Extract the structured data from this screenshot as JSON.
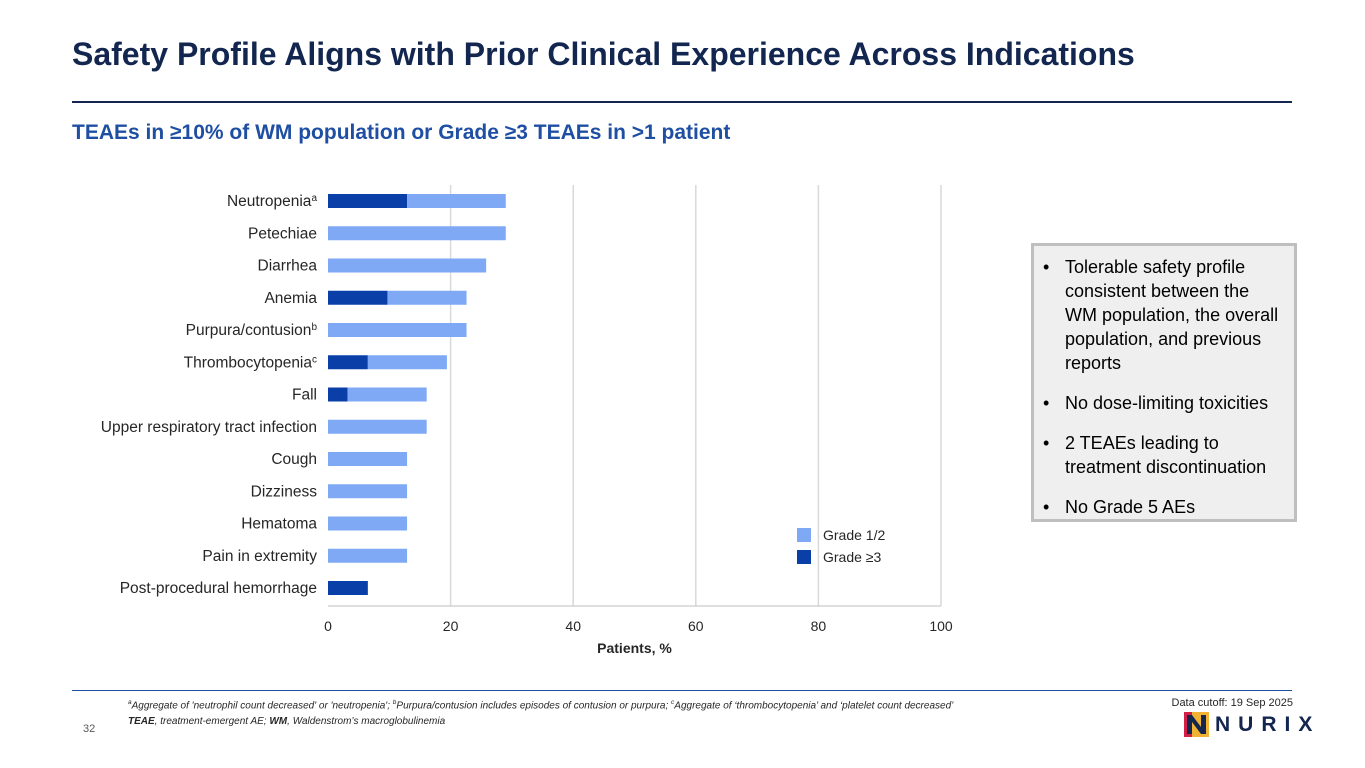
{
  "header": {
    "title": "Safety Profile Aligns with Prior Clinical Experience Across Indications",
    "subtitle": "TEAEs in ≥10% of WM population or Grade ≥3 TEAEs in >1 patient"
  },
  "chart_data": {
    "type": "bar",
    "orientation": "horizontal",
    "stacked": true,
    "categories": [
      {
        "label": "Neutropenia",
        "sup": "a"
      },
      {
        "label": "Petechiae",
        "sup": ""
      },
      {
        "label": "Diarrhea",
        "sup": ""
      },
      {
        "label": "Anemia",
        "sup": ""
      },
      {
        "label": "Purpura/contusion",
        "sup": "b"
      },
      {
        "label": "Thrombocytopenia",
        "sup": "c"
      },
      {
        "label": "Fall",
        "sup": ""
      },
      {
        "label": "Upper respiratory tract infection",
        "sup": ""
      },
      {
        "label": "Cough",
        "sup": ""
      },
      {
        "label": "Dizziness",
        "sup": ""
      },
      {
        "label": "Hematoma",
        "sup": ""
      },
      {
        "label": "Pain in extremity",
        "sup": ""
      },
      {
        "label": "Post-procedural hemorrhage",
        "sup": ""
      }
    ],
    "series": [
      {
        "name": "Grade ≥3",
        "color": "#0b3fa8",
        "values": [
          12.9,
          0,
          0,
          9.7,
          0,
          6.5,
          3.2,
          0,
          0,
          0,
          0,
          0,
          6.5
        ]
      },
      {
        "name": "Grade 1/2",
        "color": "#7fa9f5",
        "values": [
          16.1,
          29.0,
          25.8,
          12.9,
          22.6,
          12.9,
          12.9,
          16.1,
          12.9,
          12.9,
          12.9,
          12.9,
          0
        ]
      }
    ],
    "legend": [
      {
        "name": "Grade 1/2",
        "color": "#7fa9f5"
      },
      {
        "name": "Grade ≥3",
        "color": "#0b3fa8"
      }
    ],
    "xlim": [
      0,
      100
    ],
    "xticks": [
      0,
      20,
      40,
      60,
      80,
      100
    ],
    "xlabel": "Patients, %",
    "ylabel": "",
    "grid": true,
    "legend_position": "bottom-right"
  },
  "callout": {
    "bullets": [
      "Tolerable safety profile consistent between the WM population, the overall population, and previous reports",
      "No dose-limiting toxicities",
      "2 TEAEs leading to treatment discontinuation",
      "No Grade 5 AEs"
    ]
  },
  "footer": {
    "footnote_a_sup": "a",
    "footnote_a_text": "Aggregate of 'neutrophil count decreased' or 'neutropenia'; ",
    "footnote_b_sup": "b",
    "footnote_b_text": "Purpura/contusion includes episodes of contusion or purpura; ",
    "footnote_c_sup": "c",
    "footnote_c_text": "Aggregate of ‘thrombocytopenia’ and ‘platelet count decreased’",
    "abbr_teae": "TEAE",
    "abbr_teae_def": ", treatment-emergent AE; ",
    "abbr_wm": "WM",
    "abbr_wm_def": ", Waldenstrom’s macroglobulinemia",
    "data_cutoff": "Data cutoff: 19 Sep 2025",
    "page_number": "32",
    "logo_text": "NURIX",
    "brand_colors": {
      "navy": "#12264f",
      "red": "#d21f45",
      "gold": "#f2b233"
    }
  }
}
